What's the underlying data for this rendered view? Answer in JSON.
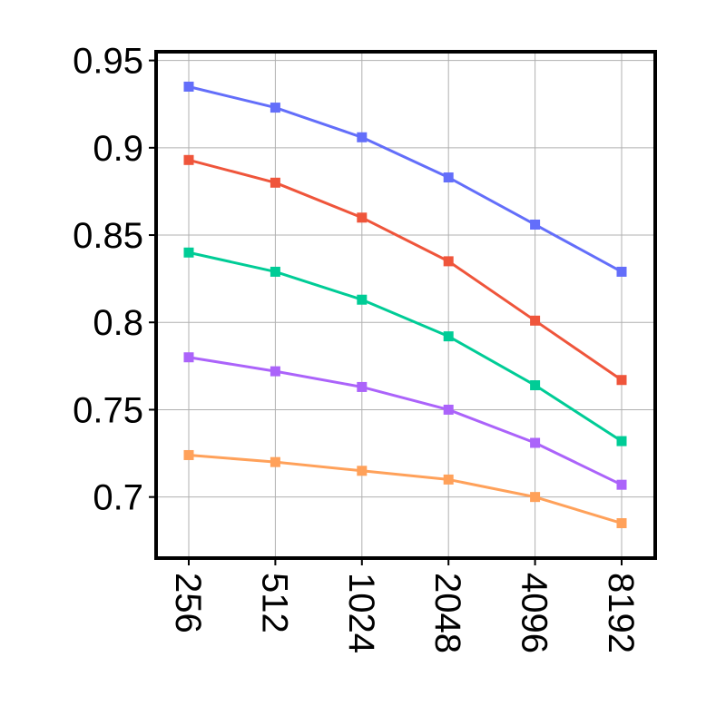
{
  "chart_data": {
    "type": "line",
    "title": "",
    "xlabel": "",
    "ylabel": "",
    "x": [
      "256",
      "512",
      "1024",
      "2048",
      "4096",
      "8192"
    ],
    "ylim": [
      0.665,
      0.955
    ],
    "yticks": [
      0.7,
      0.75,
      0.8,
      0.85,
      0.9,
      0.95
    ],
    "ytick_labels": [
      "0.7",
      "0.75",
      "0.8",
      "0.85",
      "0.9",
      "0.95"
    ],
    "grid": true,
    "marker": "square",
    "series": [
      {
        "color": "#636efa",
        "values": [
          0.935,
          0.923,
          0.906,
          0.883,
          0.856,
          0.829
        ]
      },
      {
        "color": "#ef553b",
        "values": [
          0.893,
          0.88,
          0.86,
          0.835,
          0.801,
          0.767
        ]
      },
      {
        "color": "#00cc96",
        "values": [
          0.84,
          0.829,
          0.813,
          0.792,
          0.764,
          0.732
        ]
      },
      {
        "color": "#ab63fa",
        "values": [
          0.78,
          0.772,
          0.763,
          0.75,
          0.731,
          0.707
        ]
      },
      {
        "color": "#ffa15a",
        "values": [
          0.724,
          0.72,
          0.715,
          0.71,
          0.7,
          0.685
        ]
      }
    ]
  }
}
